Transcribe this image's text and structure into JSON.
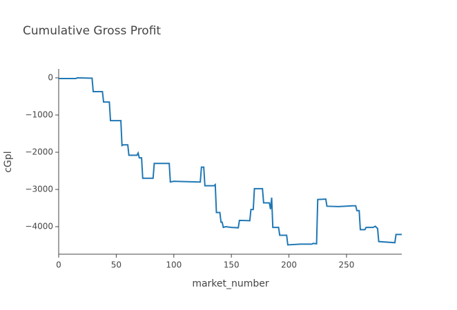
{
  "chart_data": {
    "type": "line",
    "title": "Cumulative Gross Profit",
    "x_label": "market_number",
    "y_label": "cGpl",
    "series": [
      {
        "color": "#1f77b4",
        "x": [
          0,
          15,
          16,
          29,
          30,
          38,
          39,
          44,
          45,
          54,
          55,
          56,
          60,
          61,
          68,
          69,
          70,
          72,
          73,
          82,
          83,
          96,
          97,
          100,
          123,
          124,
          126,
          127,
          135,
          136,
          137,
          140,
          141,
          142,
          143,
          145,
          150,
          156,
          157,
          166,
          167,
          169,
          170,
          177,
          178,
          183,
          184,
          185,
          186,
          191,
          192,
          198,
          199,
          210,
          220,
          221,
          224,
          225,
          232,
          233,
          243,
          255,
          258,
          259,
          261,
          262,
          266,
          267,
          273,
          275,
          277,
          278,
          292,
          293,
          298
        ],
        "values": [
          -20,
          -20,
          0,
          -10,
          -370,
          -370,
          -650,
          -650,
          -1150,
          -1150,
          -1820,
          -1800,
          -1800,
          -2080,
          -2080,
          -2020,
          -2150,
          -2150,
          -2700,
          -2700,
          -2300,
          -2300,
          -2800,
          -2780,
          -2800,
          -2400,
          -2400,
          -2900,
          -2900,
          -2870,
          -3620,
          -3620,
          -3880,
          -3880,
          -4020,
          -4000,
          -4020,
          -4030,
          -3830,
          -3840,
          -3540,
          -3540,
          -2980,
          -2980,
          -3360,
          -3360,
          -3530,
          -3220,
          -4020,
          -4020,
          -4230,
          -4230,
          -4490,
          -4470,
          -4470,
          -4450,
          -4460,
          -3270,
          -3260,
          -3450,
          -3460,
          -3440,
          -3440,
          -3570,
          -3570,
          -4080,
          -4080,
          -4020,
          -4020,
          -3990,
          -4050,
          -4400,
          -4430,
          -4210,
          -4210
        ]
      }
    ],
    "xlim": [
      0,
      298
    ],
    "xticks": [
      0,
      50,
      100,
      150,
      200,
      250
    ],
    "ylim": [
      -4740,
      240
    ],
    "yticks": [
      0,
      {
        "value": -1000,
        "label": "−1000"
      },
      {
        "value": -2000,
        "label": "−2000"
      },
      {
        "value": -3000,
        "label": "−3000"
      },
      {
        "value": -4000,
        "label": "−4000"
      }
    ]
  }
}
